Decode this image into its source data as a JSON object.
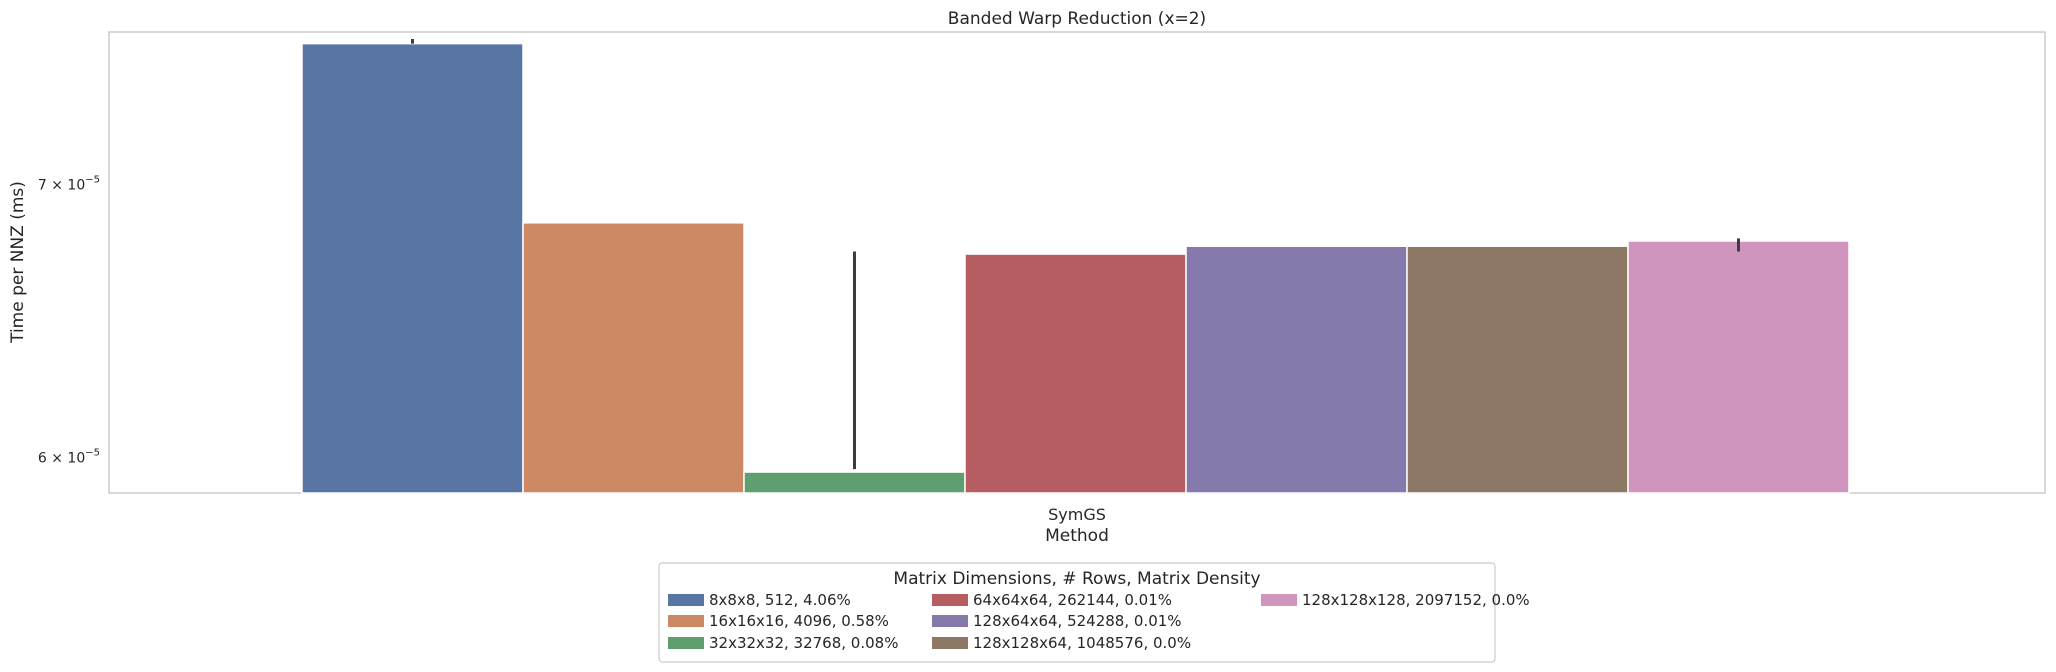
{
  "chart_data": {
    "type": "bar",
    "title": "Banded Warp Reduction (x=2)",
    "xlabel": "Method",
    "ylabel": "Time per NNZ (ms)",
    "y_scale": "log",
    "ylim": [
      5.88e-05,
      7.63e-05
    ],
    "yticks": [
      {
        "value": 6e-05,
        "mantissa": "6",
        "exponent": "−5"
      },
      {
        "value": 7e-05,
        "mantissa": "7",
        "exponent": "−5"
      }
    ],
    "y_tick_base": "10",
    "categories": [
      "SymGS"
    ],
    "grid": false,
    "legend": {
      "title": "Matrix Dimensions, # Rows, Matrix Density",
      "placement": "bottom-center",
      "columns": 3
    },
    "series": [
      {
        "name": "8x8x8, 512, 4.06%",
        "color": "#5875a4",
        "values": [
          7.58e-05
        ],
        "err_low": [
          7.58e-05
        ],
        "err_high": [
          7.6e-05
        ]
      },
      {
        "name": "16x16x16, 4096, 0.58%",
        "color": "#cc8963",
        "values": [
          6.85e-05
        ],
        "err_low": [
          6.85e-05
        ],
        "err_high": [
          6.85e-05
        ]
      },
      {
        "name": "32x32x32, 32768, 0.08%",
        "color": "#5f9e6e",
        "values": [
          5.95e-05
        ],
        "err_low": [
          5.96e-05
        ],
        "err_high": [
          6.74e-05
        ]
      },
      {
        "name": "64x64x64, 262144, 0.01%",
        "color": "#b55d60",
        "values": [
          6.73e-05
        ],
        "err_low": [
          6.73e-05
        ],
        "err_high": [
          6.73e-05
        ]
      },
      {
        "name": "128x64x64, 524288, 0.01%",
        "color": "#857aab",
        "values": [
          6.76e-05
        ],
        "err_low": [
          6.76e-05
        ],
        "err_high": [
          6.76e-05
        ]
      },
      {
        "name": "128x128x64, 1048576, 0.0%",
        "color": "#8d7866",
        "values": [
          6.76e-05
        ],
        "err_low": [
          6.76e-05
        ],
        "err_high": [
          6.76e-05
        ]
      },
      {
        "name": "128x128x128, 2097152, 0.0%",
        "color": "#d095bf",
        "values": [
          6.78e-05
        ],
        "err_low": [
          6.74e-05
        ],
        "err_high": [
          6.79e-05
        ]
      }
    ]
  }
}
